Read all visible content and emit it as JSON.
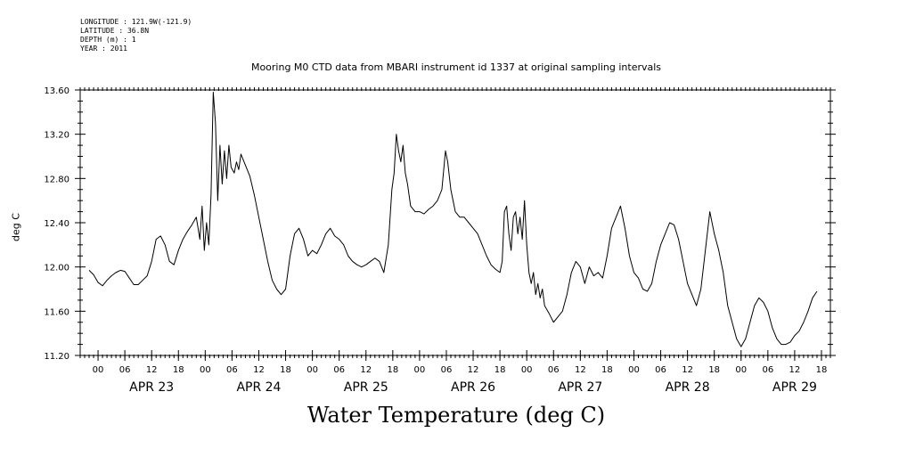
{
  "meta": {
    "longitude": "LONGITUDE : 121.9W(-121.9)",
    "latitude": "LATITUDE : 36.8N",
    "depth": "DEPTH (m) : 1",
    "year": "YEAR : 2011"
  },
  "chart_data": {
    "type": "line",
    "title": "Mooring M0 CTD data from MBARI instrument id 1337 at original sampling intervals",
    "xlabel": "Water Temperature (deg C)",
    "ylabel": "deg C",
    "ylim": [
      11.2,
      13.6
    ],
    "yticks": [
      "11.20",
      "11.60",
      "12.00",
      "12.40",
      "12.80",
      "13.20",
      "13.60"
    ],
    "xlim_hours": [
      -4,
      164
    ],
    "hour_tick_labels": [
      "00",
      "06",
      "12",
      "18",
      "00",
      "06",
      "12",
      "18",
      "00",
      "06",
      "12",
      "18",
      "00",
      "06",
      "12",
      "18",
      "00",
      "06",
      "12",
      "18",
      "00",
      "06",
      "12",
      "18",
      "00",
      "06",
      "12",
      "18"
    ],
    "day_labels": [
      "APR 23",
      "APR 24",
      "APR 25",
      "APR 26",
      "APR 27",
      "APR 28",
      "APR 29"
    ],
    "grid": false,
    "series": [
      {
        "points": [
          [
            -2,
            11.97
          ],
          [
            -1,
            11.93
          ],
          [
            0,
            11.86
          ],
          [
            1,
            11.83
          ],
          [
            2,
            11.88
          ],
          [
            3,
            11.92
          ],
          [
            4,
            11.95
          ],
          [
            5,
            11.97
          ],
          [
            6,
            11.96
          ],
          [
            7,
            11.9
          ],
          [
            8,
            11.84
          ],
          [
            9,
            11.84
          ],
          [
            10,
            11.88
          ],
          [
            11,
            11.92
          ],
          [
            12,
            12.05
          ],
          [
            13,
            12.25
          ],
          [
            14,
            12.28
          ],
          [
            15,
            12.2
          ],
          [
            16,
            12.05
          ],
          [
            17,
            12.02
          ],
          [
            18,
            12.15
          ],
          [
            19,
            12.25
          ],
          [
            20,
            12.32
          ],
          [
            21,
            12.38
          ],
          [
            22,
            12.45
          ],
          [
            22.8,
            12.25
          ],
          [
            23.3,
            12.55
          ],
          [
            23.8,
            12.15
          ],
          [
            24.3,
            12.4
          ],
          [
            24.8,
            12.2
          ],
          [
            25.3,
            12.65
          ],
          [
            25.8,
            13.58
          ],
          [
            26.3,
            13.3
          ],
          [
            26.8,
            12.6
          ],
          [
            27.3,
            13.1
          ],
          [
            27.8,
            12.75
          ],
          [
            28.3,
            13.05
          ],
          [
            28.8,
            12.8
          ],
          [
            29.3,
            13.1
          ],
          [
            29.8,
            12.9
          ],
          [
            30.5,
            12.85
          ],
          [
            31,
            12.95
          ],
          [
            31.5,
            12.88
          ],
          [
            32,
            13.02
          ],
          [
            33,
            12.92
          ],
          [
            34,
            12.82
          ],
          [
            35,
            12.65
          ],
          [
            36,
            12.45
          ],
          [
            37,
            12.25
          ],
          [
            38,
            12.05
          ],
          [
            39,
            11.88
          ],
          [
            40,
            11.8
          ],
          [
            41,
            11.75
          ],
          [
            42,
            11.8
          ],
          [
            43,
            12.1
          ],
          [
            44,
            12.3
          ],
          [
            45,
            12.35
          ],
          [
            46,
            12.25
          ],
          [
            47,
            12.1
          ],
          [
            48,
            12.15
          ],
          [
            49,
            12.12
          ],
          [
            50,
            12.2
          ],
          [
            51,
            12.3
          ],
          [
            52,
            12.35
          ],
          [
            53,
            12.28
          ],
          [
            54,
            12.25
          ],
          [
            55,
            12.2
          ],
          [
            56,
            12.1
          ],
          [
            57,
            12.05
          ],
          [
            58,
            12.02
          ],
          [
            59,
            12.0
          ],
          [
            60,
            12.02
          ],
          [
            61,
            12.05
          ],
          [
            62,
            12.08
          ],
          [
            63,
            12.05
          ],
          [
            64,
            11.95
          ],
          [
            65,
            12.2
          ],
          [
            65.8,
            12.7
          ],
          [
            66.3,
            12.85
          ],
          [
            66.8,
            13.2
          ],
          [
            67.3,
            13.05
          ],
          [
            67.8,
            12.95
          ],
          [
            68.3,
            13.1
          ],
          [
            68.8,
            12.85
          ],
          [
            69.3,
            12.75
          ],
          [
            70,
            12.55
          ],
          [
            71,
            12.5
          ],
          [
            72,
            12.5
          ],
          [
            73,
            12.48
          ],
          [
            74,
            12.52
          ],
          [
            75,
            12.55
          ],
          [
            76,
            12.6
          ],
          [
            77,
            12.7
          ],
          [
            77.8,
            13.05
          ],
          [
            78.3,
            12.95
          ],
          [
            79,
            12.7
          ],
          [
            80,
            12.5
          ],
          [
            81,
            12.45
          ],
          [
            82,
            12.45
          ],
          [
            83,
            12.4
          ],
          [
            84,
            12.35
          ],
          [
            85,
            12.3
          ],
          [
            86,
            12.2
          ],
          [
            87,
            12.1
          ],
          [
            88,
            12.02
          ],
          [
            89,
            11.98
          ],
          [
            90,
            11.95
          ],
          [
            90.5,
            12.05
          ],
          [
            91,
            12.5
          ],
          [
            91.5,
            12.55
          ],
          [
            92,
            12.3
          ],
          [
            92.5,
            12.15
          ],
          [
            93,
            12.45
          ],
          [
            93.5,
            12.5
          ],
          [
            94,
            12.3
          ],
          [
            94.5,
            12.45
          ],
          [
            95,
            12.25
          ],
          [
            95.5,
            12.6
          ],
          [
            96,
            12.2
          ],
          [
            96.5,
            11.95
          ],
          [
            97,
            11.85
          ],
          [
            97.5,
            11.95
          ],
          [
            98,
            11.75
          ],
          [
            98.5,
            11.85
          ],
          [
            99,
            11.72
          ],
          [
            99.5,
            11.8
          ],
          [
            100,
            11.65
          ],
          [
            101,
            11.58
          ],
          [
            102,
            11.5
          ],
          [
            103,
            11.55
          ],
          [
            104,
            11.6
          ],
          [
            105,
            11.75
          ],
          [
            106,
            11.95
          ],
          [
            107,
            12.05
          ],
          [
            108,
            12.0
          ],
          [
            109,
            11.85
          ],
          [
            110,
            12.0
          ],
          [
            111,
            11.92
          ],
          [
            112,
            11.95
          ],
          [
            113,
            11.9
          ],
          [
            114,
            12.1
          ],
          [
            115,
            12.35
          ],
          [
            116,
            12.45
          ],
          [
            117,
            12.55
          ],
          [
            118,
            12.35
          ],
          [
            119,
            12.1
          ],
          [
            120,
            11.95
          ],
          [
            121,
            11.9
          ],
          [
            122,
            11.8
          ],
          [
            123,
            11.78
          ],
          [
            124,
            11.85
          ],
          [
            125,
            12.05
          ],
          [
            126,
            12.2
          ],
          [
            127,
            12.3
          ],
          [
            128,
            12.4
          ],
          [
            129,
            12.38
          ],
          [
            130,
            12.25
          ],
          [
            131,
            12.05
          ],
          [
            132,
            11.85
          ],
          [
            133,
            11.75
          ],
          [
            134,
            11.65
          ],
          [
            135,
            11.8
          ],
          [
            136,
            12.15
          ],
          [
            137,
            12.5
          ],
          [
            138,
            12.3
          ],
          [
            139,
            12.15
          ],
          [
            140,
            11.95
          ],
          [
            141,
            11.65
          ],
          [
            142,
            11.5
          ],
          [
            143,
            11.35
          ],
          [
            144,
            11.28
          ],
          [
            145,
            11.35
          ],
          [
            146,
            11.5
          ],
          [
            147,
            11.65
          ],
          [
            148,
            11.72
          ],
          [
            149,
            11.68
          ],
          [
            150,
            11.6
          ],
          [
            151,
            11.45
          ],
          [
            152,
            11.35
          ],
          [
            153,
            11.3
          ],
          [
            154,
            11.3
          ],
          [
            155,
            11.32
          ],
          [
            156,
            11.38
          ],
          [
            157,
            11.42
          ],
          [
            158,
            11.5
          ],
          [
            159,
            11.6
          ],
          [
            160,
            11.72
          ],
          [
            161,
            11.78
          ]
        ]
      }
    ]
  }
}
